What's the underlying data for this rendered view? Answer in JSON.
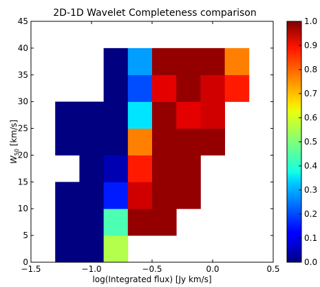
{
  "chart_data": {
    "type": "heatmap",
    "title": "2D-1D Wavelet Completeness comparison",
    "xlabel": "log(Integrated flux) [Jy km/s]",
    "ylabel_main": "W",
    "ylabel_sub": "50",
    "ylabel_unit": " [km/s]",
    "xlim": [
      -1.5,
      0.5
    ],
    "ylim": [
      0,
      45
    ],
    "xticks": [
      -1.5,
      -1.0,
      -0.5,
      0.0,
      0.5
    ],
    "xtick_labels": [
      "−1.5",
      "−1.0",
      "−0.5",
      "0.0",
      "0.5"
    ],
    "yticks": [
      0,
      5,
      10,
      15,
      20,
      25,
      30,
      35,
      40,
      45
    ],
    "ytick_labels": [
      "0",
      "5",
      "10",
      "15",
      "20",
      "25",
      "30",
      "35",
      "40",
      "45"
    ],
    "x_bin_edges": [
      -1.3,
      -1.1,
      -0.9,
      -0.7,
      -0.5,
      -0.3,
      -0.1,
      0.1,
      0.3
    ],
    "y_bin_edges": [
      0,
      5,
      10,
      15,
      20,
      25,
      30,
      35,
      40
    ],
    "values": [
      [
        0.0,
        0.0,
        0.55,
        null,
        null,
        null,
        null,
        null
      ],
      [
        0.0,
        0.0,
        0.45,
        0.98,
        0.98,
        null,
        null,
        null
      ],
      [
        0.0,
        0.0,
        0.15,
        0.92,
        0.98,
        0.98,
        null,
        null
      ],
      [
        null,
        0.0,
        0.05,
        0.85,
        0.98,
        0.98,
        null,
        null
      ],
      [
        0.0,
        0.0,
        0.0,
        0.75,
        0.98,
        0.98,
        0.98,
        null
      ],
      [
        0.0,
        0.0,
        0.0,
        0.35,
        0.98,
        0.9,
        0.92,
        null
      ],
      [
        null,
        null,
        0.0,
        0.2,
        0.9,
        0.98,
        0.92,
        0.85
      ],
      [
        null,
        null,
        0.0,
        0.28,
        0.98,
        0.98,
        0.98,
        0.75
      ]
    ],
    "colorbar": {
      "range": [
        0,
        1
      ],
      "ticks": [
        0.0,
        0.1,
        0.2,
        0.3,
        0.4,
        0.5,
        0.6,
        0.7,
        0.8,
        0.9,
        1.0
      ],
      "tick_labels": [
        "0.0",
        "0.1",
        "0.2",
        "0.3",
        "0.4",
        "0.5",
        "0.6",
        "0.7",
        "0.8",
        "0.9",
        "1.0"
      ],
      "colormap": "jet"
    },
    "grid": false
  }
}
